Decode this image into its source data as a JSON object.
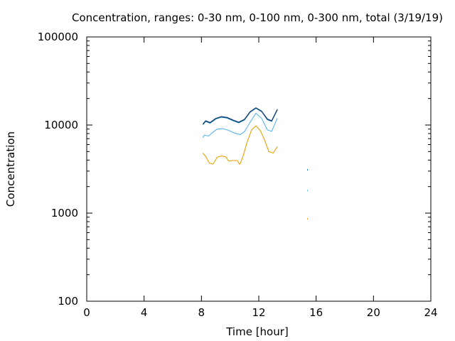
{
  "chart_data": {
    "type": "line",
    "title": "Concentration, ranges: 0-30 nm, 0-100 nm, 0-300 nm, total (3/19/19)",
    "xlabel": "Time [hour]",
    "ylabel": "Concentration",
    "xlim": [
      0,
      24
    ],
    "ylim": [
      100,
      100000
    ],
    "yscale": "log",
    "grid": false,
    "legend": "none",
    "xticks": [
      0,
      4,
      8,
      12,
      16,
      20,
      24
    ],
    "xtick_labels": [
      "0",
      "4",
      "8",
      "12",
      "16",
      "20",
      "24"
    ],
    "yticks": [
      100,
      1000,
      10000,
      100000
    ],
    "ytick_labels": [
      "100",
      "1000",
      "10000",
      "100000"
    ],
    "series": [
      {
        "color": "#e69f00",
        "x": [
          8.1,
          8.3,
          8.55,
          8.8,
          9.1,
          9.4,
          9.7,
          9.9,
          10.2,
          10.5,
          10.65,
          10.7,
          10.9,
          11.2,
          11.5,
          11.8,
          12.1,
          12.4,
          12.7,
          13.0,
          13.3
        ],
        "y": [
          4800,
          4400,
          3700,
          3600,
          4300,
          4450,
          4350,
          3900,
          3950,
          3950,
          3600,
          3650,
          4400,
          6500,
          8800,
          9800,
          8700,
          6800,
          5000,
          4800,
          5700
        ]
      },
      {
        "color": "#56b4e9",
        "x": [
          8.1,
          8.2,
          8.5,
          8.8,
          9.1,
          9.5,
          9.9,
          10.3,
          10.7,
          11.0,
          11.4,
          11.8,
          12.2,
          12.6,
          12.9,
          13.3
        ],
        "y": [
          7200,
          7700,
          7500,
          8300,
          9000,
          9100,
          8700,
          8100,
          7800,
          8400,
          10800,
          13600,
          11900,
          8800,
          8500,
          12000
        ]
      },
      {
        "color": "#0072b2",
        "x": [
          8.1,
          8.3,
          8.6,
          9.0,
          9.4,
          9.8,
          10.2,
          10.6,
          11.0,
          11.4,
          11.8,
          12.2,
          12.6,
          12.9,
          13.3
        ],
        "y": [
          10100,
          11000,
          10500,
          11700,
          12300,
          12000,
          11200,
          10600,
          11400,
          14000,
          15500,
          14200,
          11500,
          11000,
          14900
        ]
      },
      {
        "color": "#1a3a6b",
        "x": [
          8.1,
          8.3,
          8.6,
          9.0,
          9.4,
          9.8,
          10.2,
          10.6,
          11.0,
          11.4,
          11.8,
          12.2,
          12.6,
          12.9,
          13.3
        ],
        "y": [
          10300,
          11200,
          10700,
          11900,
          12500,
          12200,
          11400,
          10800,
          11600,
          14200,
          15700,
          14400,
          11700,
          11200,
          15100
        ]
      }
    ],
    "points": [
      {
        "color": "#0072b2",
        "x": 15.4,
        "y": 3100
      },
      {
        "color": "#56b4e9",
        "x": 15.4,
        "y": 1800
      },
      {
        "color": "#e69f00",
        "x": 15.4,
        "y": 860
      }
    ]
  }
}
